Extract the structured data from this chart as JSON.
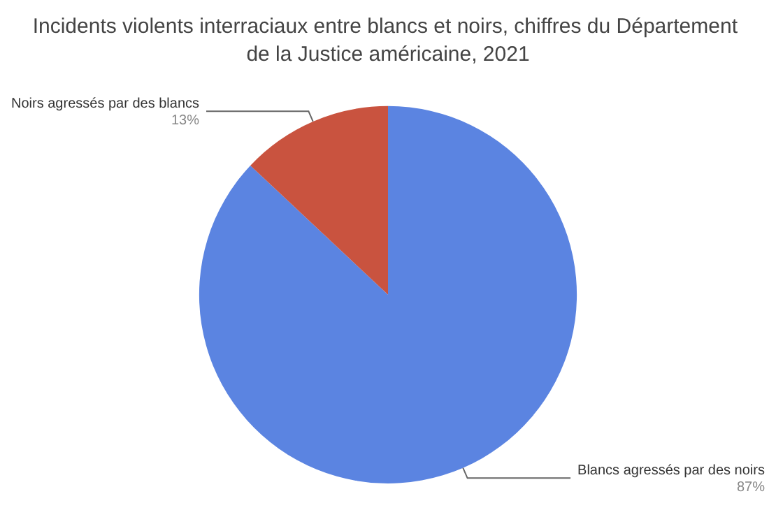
{
  "chart_data": {
    "type": "pie",
    "title": "Incidents violents interraciaux entre blancs et noirs, chiffres du Département de la Justice américaine, 2021",
    "categories": [
      "Blancs agressés par des noirs",
      "Noirs agressés par des blancs"
    ],
    "values": [
      87,
      13
    ],
    "colors": [
      "#5b84e1",
      "#c9533f"
    ],
    "value_labels": [
      "87%",
      "13%"
    ],
    "legend": false
  }
}
